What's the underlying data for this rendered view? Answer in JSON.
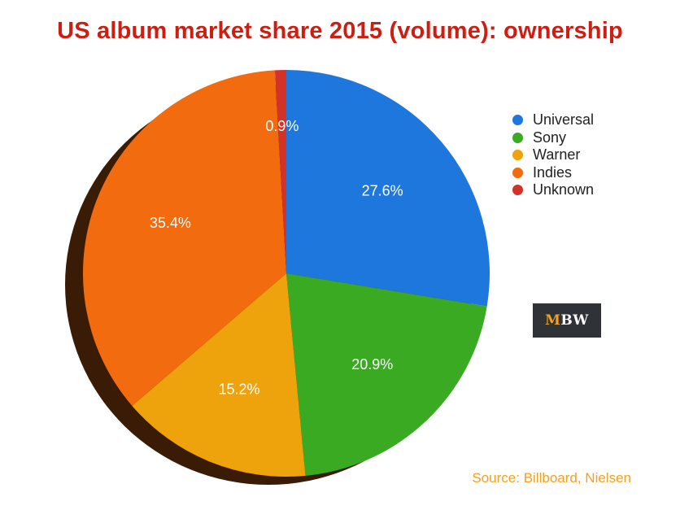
{
  "title": "US album market share 2015 (volume): ownership",
  "source": "Source: Billboard, Nielsen",
  "logo": {
    "text_accent": "M",
    "text_rest": "BW"
  },
  "chart_data": {
    "type": "pie",
    "title": "US album market share 2015 (volume): ownership",
    "legend_position": "top-right",
    "slices": [
      {
        "label": "Universal",
        "value": 27.6,
        "display": "27.6%",
        "color": "#1e77dc"
      },
      {
        "label": "Sony",
        "value": 20.9,
        "display": "20.9%",
        "color": "#3aaa22"
      },
      {
        "label": "Warner",
        "value": 15.2,
        "display": "15.2%",
        "color": "#eea20c"
      },
      {
        "label": "Indies",
        "value": 35.4,
        "display": "35.4%",
        "color": "#f26b0f"
      },
      {
        "label": "Unknown",
        "value": 0.9,
        "display": "0.9%",
        "color": "#d23329"
      }
    ]
  }
}
